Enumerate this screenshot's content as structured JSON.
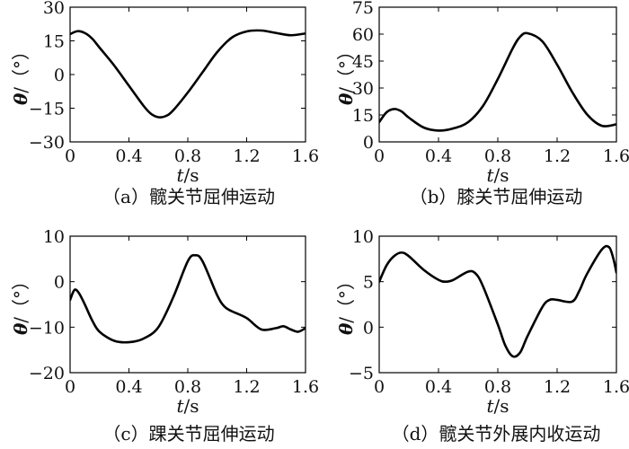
{
  "chart_data": [
    {
      "type": "line",
      "caption": "（a）髋关节屈伸运动",
      "xlabel_var": "t",
      "xlabel_unit": "/s",
      "ylabel_var": "θ",
      "ylabel_unit": "/（°）",
      "xlim": [
        0,
        1.6
      ],
      "ylim": [
        -30,
        30
      ],
      "xticks": [
        0,
        0.4,
        0.8,
        1.2,
        1.6
      ],
      "xtick_labels": [
        "0",
        "0.4",
        "0.8",
        "1.2",
        "1.6"
      ],
      "yticks": [
        30,
        15,
        0,
        -15,
        -30
      ],
      "ytick_labels": [
        "30",
        "15",
        "0",
        "−15",
        "−30"
      ],
      "x": [
        0,
        0.05,
        0.1,
        0.15,
        0.2,
        0.3,
        0.4,
        0.5,
        0.55,
        0.6,
        0.65,
        0.7,
        0.8,
        0.9,
        1.0,
        1.1,
        1.2,
        1.3,
        1.4,
        1.5,
        1.6
      ],
      "y": [
        18,
        19.3,
        18.5,
        16,
        12,
        4,
        -5,
        -14,
        -17.5,
        -19,
        -18.5,
        -16,
        -8,
        1,
        10,
        16.5,
        19.2,
        19.6,
        18.5,
        17.5,
        18.3
      ]
    },
    {
      "type": "line",
      "caption": "（b）膝关节屈伸运动",
      "xlabel_var": "t",
      "xlabel_unit": "/s",
      "ylabel_var": "θ",
      "ylabel_unit": "/（°）",
      "xlim": [
        0,
        1.6
      ],
      "ylim": [
        0,
        75
      ],
      "xticks": [
        0,
        0.4,
        0.8,
        1.2,
        1.6
      ],
      "xtick_labels": [
        "0",
        "0.4",
        "0.8",
        "1.2",
        "1.6"
      ],
      "yticks": [
        75,
        60,
        45,
        30,
        15,
        0
      ],
      "ytick_labels": [
        "75",
        "60",
        "45",
        "30",
        "15",
        "0"
      ],
      "x": [
        0,
        0.05,
        0.1,
        0.15,
        0.2,
        0.3,
        0.4,
        0.5,
        0.6,
        0.7,
        0.8,
        0.9,
        0.95,
        1.0,
        1.1,
        1.2,
        1.3,
        1.4,
        1.5,
        1.6
      ],
      "y": [
        11,
        16.5,
        18.3,
        17,
        13.5,
        8,
        6.3,
        7.5,
        11,
        20,
        35,
        52,
        58.5,
        60.5,
        56,
        43,
        28,
        15.5,
        9,
        9.8
      ]
    },
    {
      "type": "line",
      "caption": "（c）踝关节屈伸运动",
      "xlabel_var": "t",
      "xlabel_unit": "/s",
      "ylabel_var": "θ",
      "ylabel_unit": "/（°）",
      "xlim": [
        0,
        1.6
      ],
      "ylim": [
        -20,
        10
      ],
      "xticks": [
        0,
        0.4,
        0.8,
        1.2,
        1.6
      ],
      "xtick_labels": [
        "0",
        "0.4",
        "0.8",
        "1.2",
        "1.6"
      ],
      "yticks": [
        10,
        0,
        -10,
        -20
      ],
      "ytick_labels": [
        "10",
        "0",
        "−10",
        "−20"
      ],
      "x": [
        0,
        0.03,
        0.06,
        0.1,
        0.15,
        0.2,
        0.3,
        0.4,
        0.5,
        0.6,
        0.7,
        0.8,
        0.85,
        0.9,
        1.0,
        1.05,
        1.1,
        1.2,
        1.3,
        1.4,
        1.45,
        1.5,
        1.55,
        1.6
      ],
      "y": [
        -4,
        -1.8,
        -2.5,
        -5,
        -8.5,
        -11,
        -13,
        -13.3,
        -12.5,
        -10,
        -3.5,
        4.5,
        5.8,
        4.5,
        -3,
        -5.5,
        -6.5,
        -8,
        -10.5,
        -10.2,
        -9.8,
        -10.5,
        -11,
        -10.2
      ]
    },
    {
      "type": "line",
      "caption": "（d）髋关节外展内收运动",
      "xlabel_var": "t",
      "xlabel_unit": "/s",
      "ylabel_var": "θ",
      "ylabel_unit": "/（°）",
      "xlim": [
        0,
        1.6
      ],
      "ylim": [
        -5,
        10
      ],
      "xticks": [
        0,
        0.4,
        0.8,
        1.2,
        1.6
      ],
      "xtick_labels": [
        "0",
        "0.4",
        "0.8",
        "1.2",
        "1.6"
      ],
      "yticks": [
        10,
        5,
        0,
        -5
      ],
      "ytick_labels": [
        "10",
        "5",
        "0",
        "−5"
      ],
      "x": [
        0,
        0.05,
        0.1,
        0.15,
        0.2,
        0.3,
        0.4,
        0.45,
        0.5,
        0.6,
        0.65,
        0.7,
        0.8,
        0.85,
        0.9,
        0.95,
        1.0,
        1.1,
        1.15,
        1.2,
        1.3,
        1.35,
        1.4,
        1.5,
        1.55,
        1.58,
        1.6
      ],
      "y": [
        5,
        6.8,
        7.8,
        8.2,
        7.8,
        6.3,
        5.2,
        5.0,
        5.2,
        6.1,
        5.9,
        4.5,
        0.3,
        -2,
        -3.2,
        -2.8,
        -1,
        2.2,
        3,
        3,
        2.8,
        4,
        5.8,
        8.5,
        8.8,
        7.5,
        6
      ]
    }
  ]
}
